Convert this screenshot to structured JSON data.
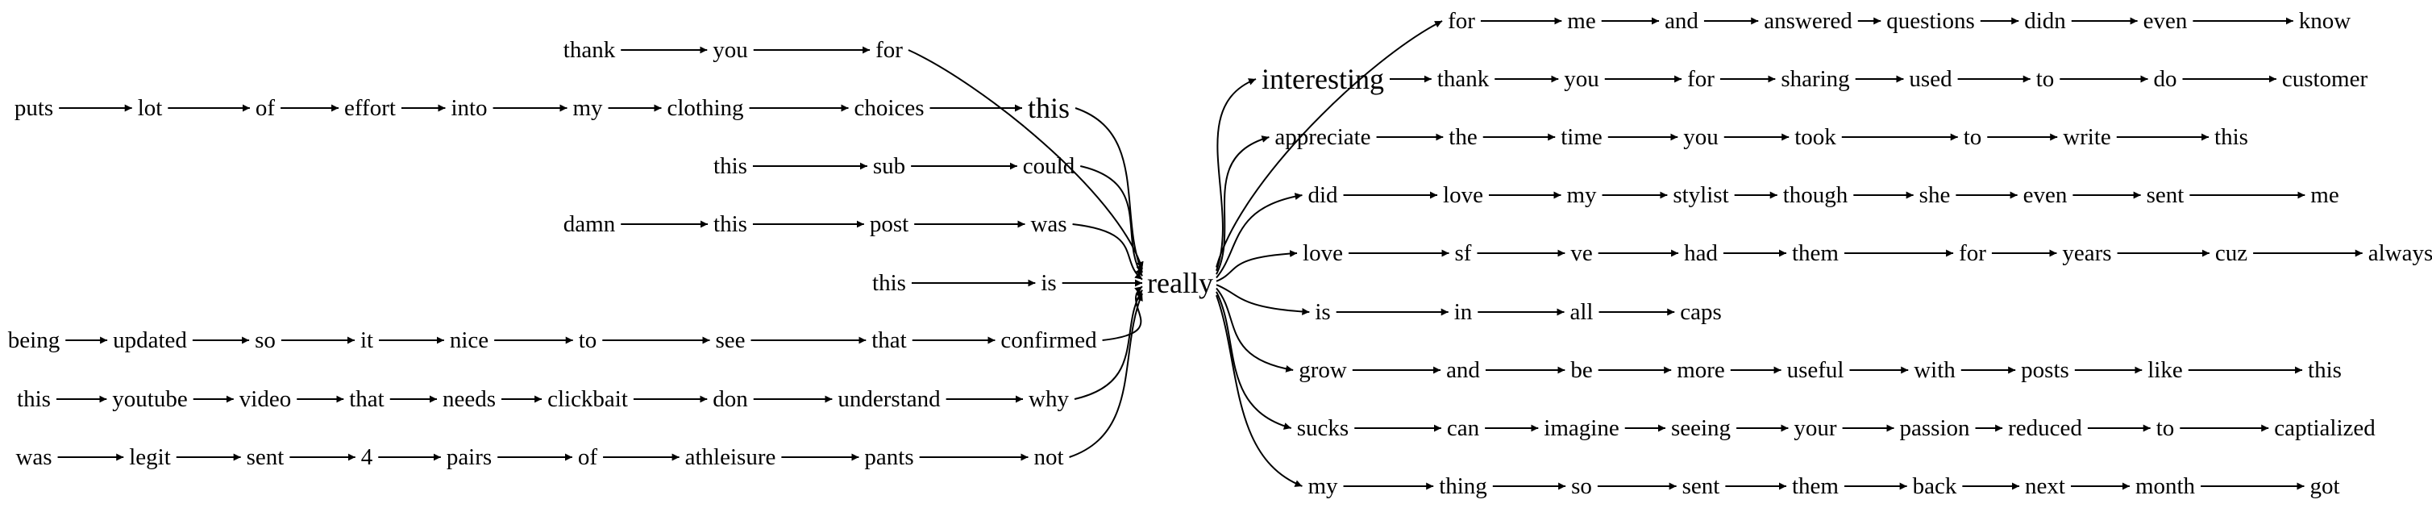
{
  "center": "really",
  "left_chains": [
    [
      "thank",
      "you",
      "for"
    ],
    [
      "puts",
      "lot",
      "of",
      "effort",
      "into",
      "my",
      "clothing",
      "choices",
      "this"
    ],
    [
      "this",
      "sub",
      "could"
    ],
    [
      "damn",
      "this",
      "post",
      "was"
    ],
    [
      "this",
      "is"
    ],
    [
      "being",
      "updated",
      "so",
      "it",
      "nice",
      "to",
      "see",
      "that",
      "confirmed"
    ],
    [
      "this",
      "youtube",
      "video",
      "that",
      "needs",
      "clickbait",
      "don",
      "understand",
      "why"
    ],
    [
      "was",
      "legit",
      "sent",
      "4",
      "pairs",
      "of",
      "athleisure",
      "pants",
      "not"
    ]
  ],
  "right_chains": [
    [
      "for",
      "me",
      "and",
      "answered",
      "questions",
      "didn",
      "even",
      "know"
    ],
    [
      "interesting",
      "thank",
      "you",
      "for",
      "sharing",
      "used",
      "to",
      "do",
      "customer"
    ],
    [
      "appreciate",
      "the",
      "time",
      "you",
      "took",
      "to",
      "write",
      "this"
    ],
    [
      "did",
      "love",
      "my",
      "stylist",
      "though",
      "she",
      "even",
      "sent",
      "me"
    ],
    [
      "love",
      "sf",
      "ve",
      "had",
      "them",
      "for",
      "years",
      "cuz",
      "always"
    ],
    [
      "is",
      "in",
      "all",
      "caps"
    ],
    [
      "grow",
      "and",
      "be",
      "more",
      "useful",
      "with",
      "posts",
      "like",
      "this"
    ],
    [
      "sucks",
      "can",
      "imagine",
      "seeing",
      "your",
      "passion",
      "reduced",
      "to",
      "captialized"
    ],
    [
      "my",
      "thing",
      "so",
      "sent",
      "them",
      "back",
      "next",
      "month",
      "got"
    ]
  ]
}
